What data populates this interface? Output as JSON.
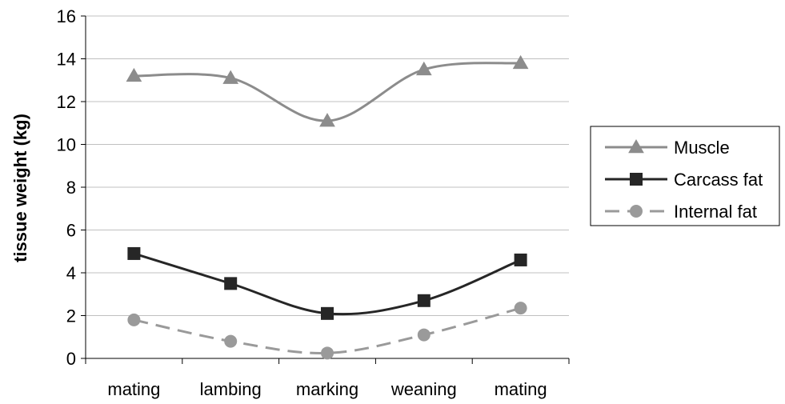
{
  "colors": {
    "background": "#ffffff",
    "gridline": "#c0c0c0",
    "axis": "#000000",
    "muscle": "#8c8c8c",
    "carcass_fat": "#262626",
    "internal_fat": "#9a9a9a",
    "legend_border": "#000000"
  },
  "chart_data": {
    "type": "line",
    "title": "",
    "xlabel": "",
    "ylabel": "tissue weight (kg)",
    "categories": [
      "mating",
      "lambing",
      "marking",
      "weaning",
      "mating"
    ],
    "ylim": [
      0,
      16
    ],
    "yticks": [
      0,
      2,
      4,
      6,
      8,
      10,
      12,
      14,
      16
    ],
    "grid": true,
    "smooth_lines": true,
    "legend_position": "right",
    "series": [
      {
        "name": "Muscle",
        "marker": "triangle",
        "dashed": false,
        "color": "#8c8c8c",
        "values": [
          13.2,
          13.1,
          11.1,
          13.5,
          13.8
        ]
      },
      {
        "name": "Carcass fat",
        "marker": "square",
        "dashed": false,
        "color": "#262626",
        "values": [
          4.9,
          3.5,
          2.1,
          2.7,
          4.6
        ]
      },
      {
        "name": "Internal fat",
        "marker": "circle",
        "dashed": true,
        "color": "#9a9a9a",
        "values": [
          1.8,
          0.8,
          0.25,
          1.1,
          2.35
        ]
      }
    ]
  }
}
